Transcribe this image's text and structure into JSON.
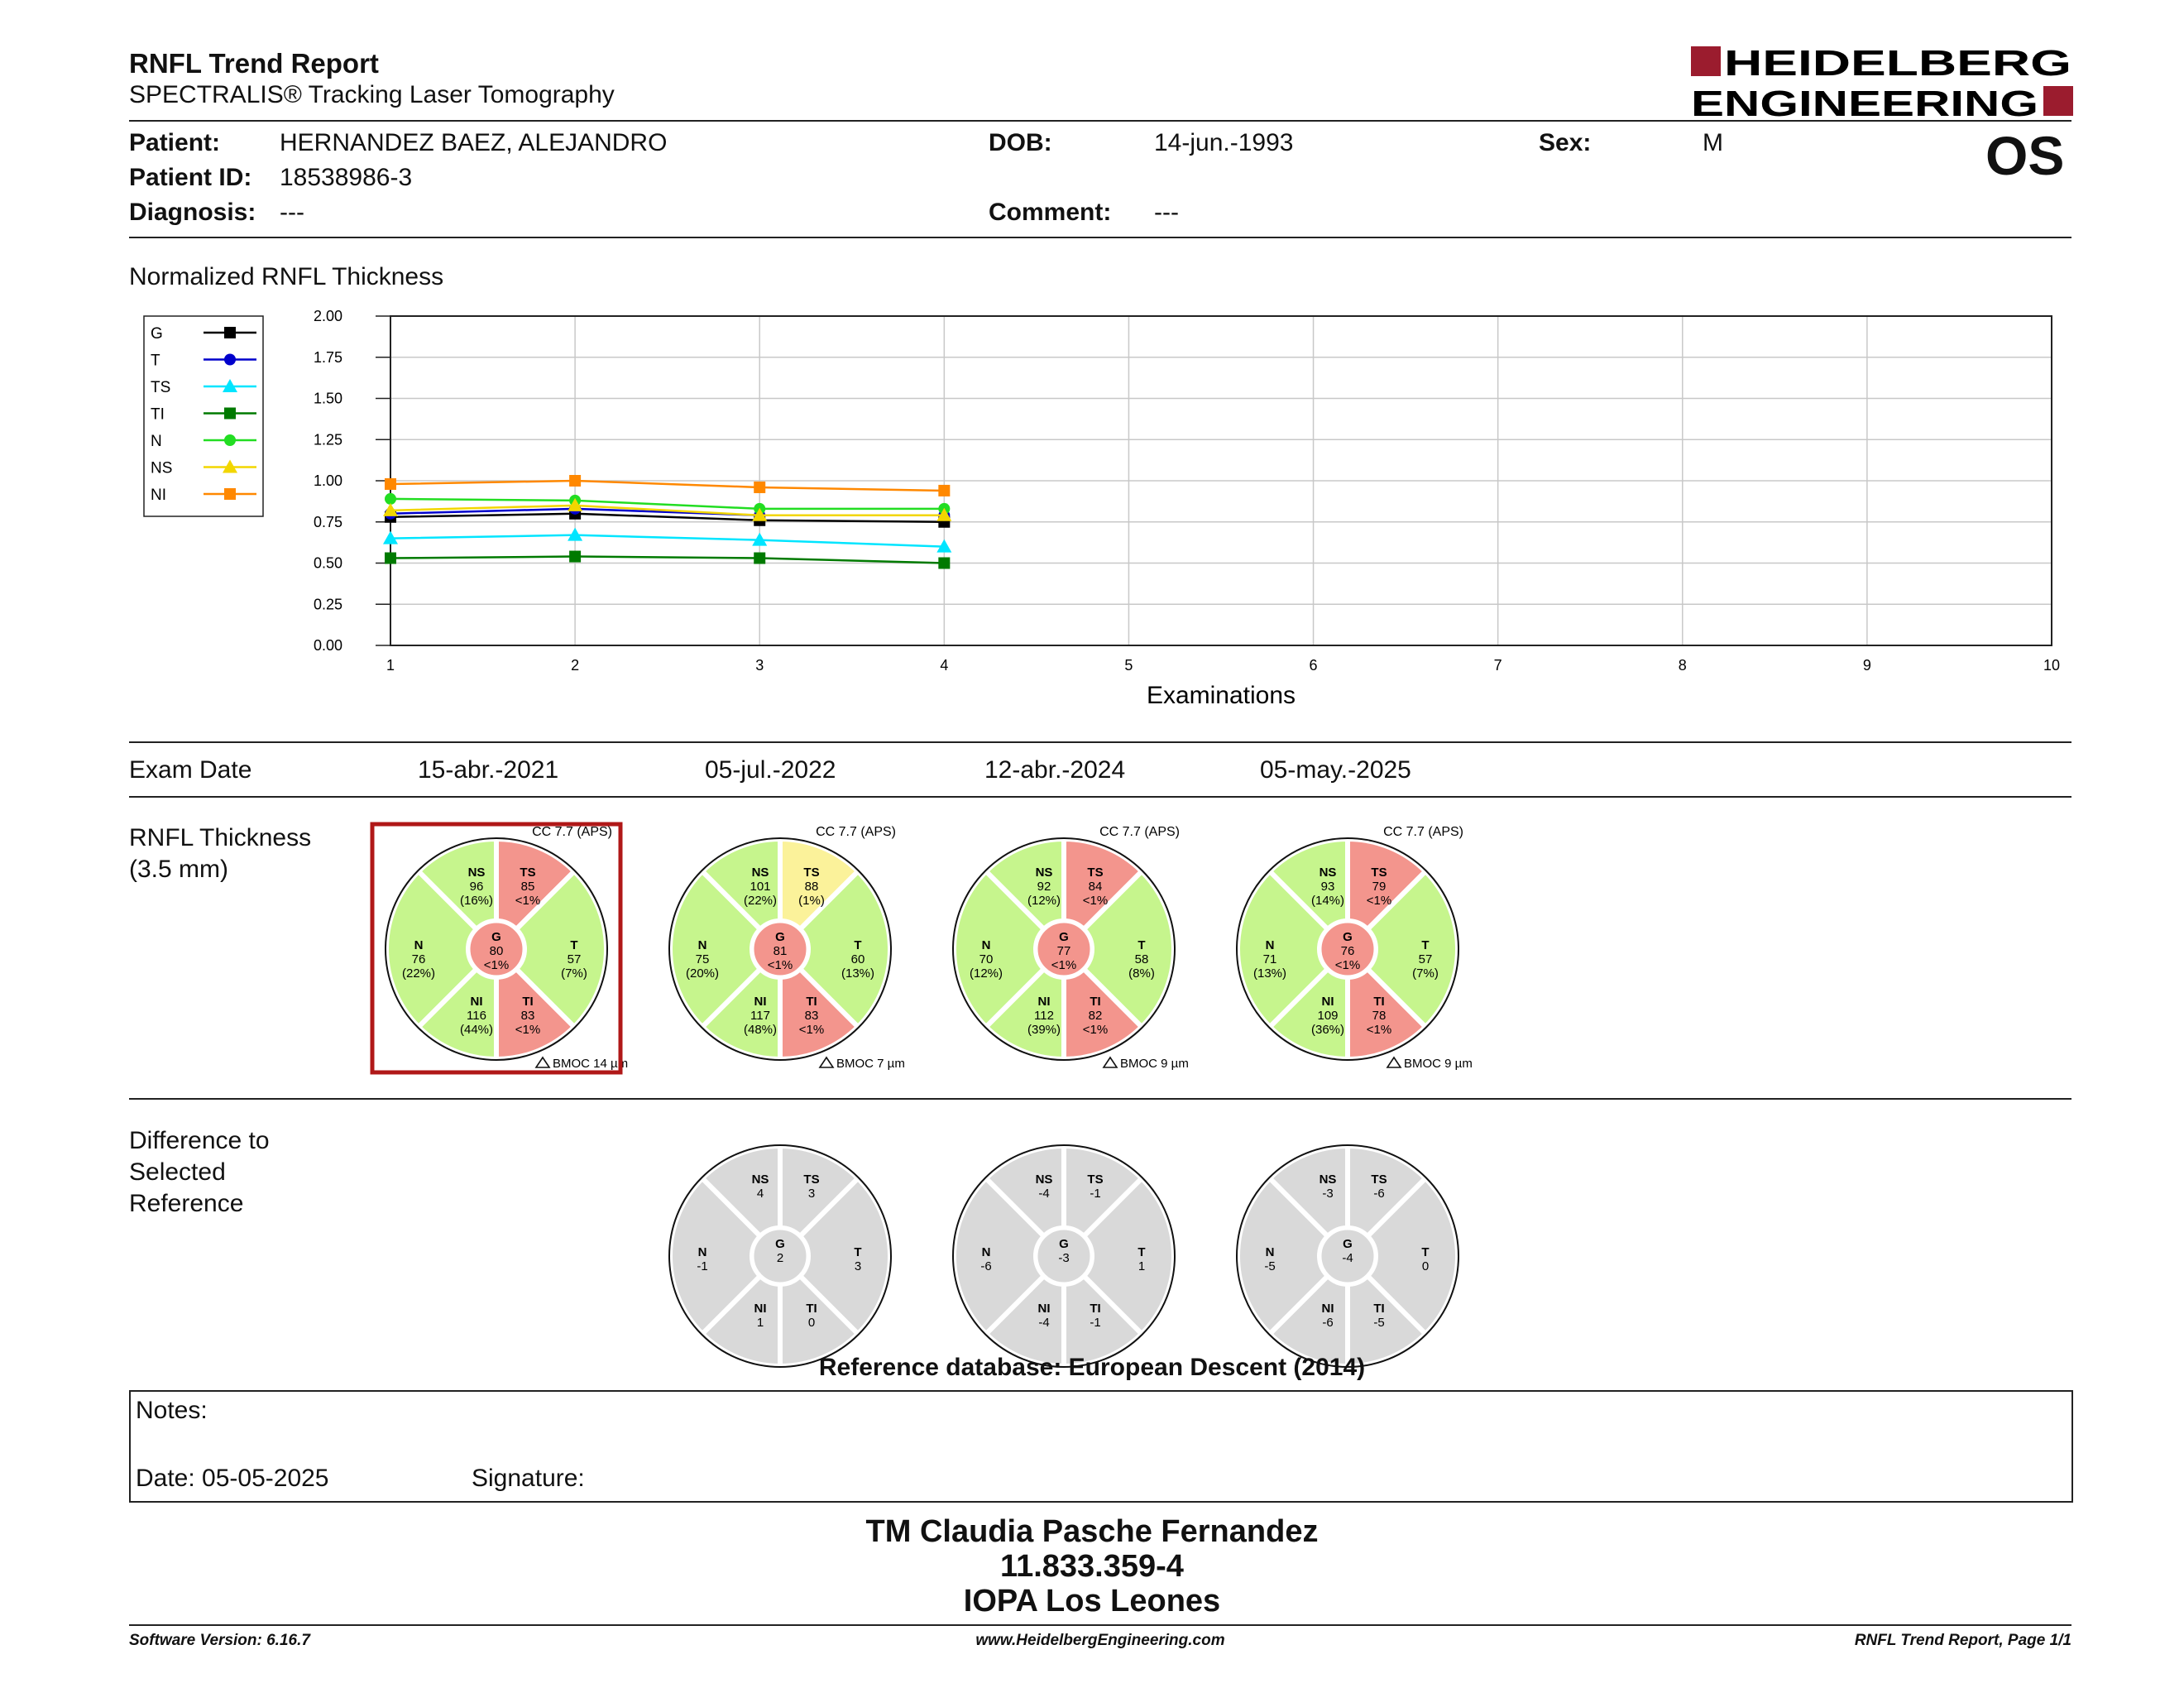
{
  "header": {
    "title": "RNFL Trend Report",
    "subtitle": "SPECTRALIS® Tracking Laser Tomography",
    "logo_line1": "HEIDELBERG",
    "logo_line2": "ENGINEERING",
    "brand_color": "#9b1c2e"
  },
  "patient": {
    "patient_label": "Patient:",
    "patient_value": "HERNANDEZ BAEZ, ALEJANDRO",
    "id_label": "Patient ID:",
    "id_value": "18538986-3",
    "diagnosis_label": "Diagnosis:",
    "diagnosis_value": "---",
    "dob_label": "DOB:",
    "dob_value": "14-jun.-1993",
    "comment_label": "Comment:",
    "comment_value": "---",
    "sex_label": "Sex:",
    "sex_value": "M",
    "eye": "OS"
  },
  "chart_data": {
    "type": "line",
    "title": "Normalized RNFL Thickness",
    "xlabel": "Examinations",
    "ylabel": "",
    "xlim": [
      1,
      10
    ],
    "ylim": [
      0,
      2
    ],
    "x_ticks": [
      "1",
      "2",
      "3",
      "4",
      "5",
      "6",
      "7",
      "8",
      "9",
      "10"
    ],
    "y_ticks": [
      "0.00",
      "0.25",
      "0.50",
      "0.75",
      "1.00",
      "1.25",
      "1.50",
      "1.75",
      "2.00"
    ],
    "grid": true,
    "legend_position": "left",
    "x": [
      1,
      2,
      3,
      4
    ],
    "series": [
      {
        "name": "G",
        "color": "#000000",
        "marker": "square",
        "values": [
          0.78,
          0.8,
          0.76,
          0.75
        ]
      },
      {
        "name": "T",
        "color": "#0000cc",
        "marker": "circle",
        "values": [
          0.8,
          0.83,
          0.79,
          0.79
        ]
      },
      {
        "name": "TS",
        "color": "#00e5ff",
        "marker": "triangle",
        "values": [
          0.65,
          0.67,
          0.64,
          0.6
        ]
      },
      {
        "name": "TI",
        "color": "#007a00",
        "marker": "square",
        "values": [
          0.53,
          0.54,
          0.53,
          0.5
        ]
      },
      {
        "name": "N",
        "color": "#22dd22",
        "marker": "circle",
        "values": [
          0.89,
          0.88,
          0.83,
          0.83
        ]
      },
      {
        "name": "NS",
        "color": "#f2d600",
        "marker": "triangle",
        "values": [
          0.82,
          0.85,
          0.79,
          0.79
        ]
      },
      {
        "name": "NI",
        "color": "#ff8800",
        "marker": "square",
        "values": [
          0.98,
          1.0,
          0.96,
          0.94
        ]
      }
    ]
  },
  "exams": {
    "label": "Exam Date",
    "dates": [
      "15-abr.-2021",
      "05-jul.-2022",
      "12-abr.-2024",
      "05-may.-2025"
    ]
  },
  "thickness": {
    "label_line1": "RNFL Thickness",
    "label_line2": "(3.5 mm)",
    "colors": {
      "normal": "#c6f58d",
      "borderline": "#fbf29a",
      "outside": "#f3958d",
      "diff": "#d9d9d9"
    },
    "selected_index": 0,
    "exams": [
      {
        "cc": "CC 7.7 (APS)",
        "bmoc": "BMOC 14 µm",
        "G": {
          "v": "80",
          "p": "<1%",
          "s": "outside"
        },
        "T": {
          "v": "57",
          "p": "(7%)",
          "s": "normal"
        },
        "TS": {
          "v": "85",
          "p": "<1%",
          "s": "outside"
        },
        "TI": {
          "v": "83",
          "p": "<1%",
          "s": "outside"
        },
        "N": {
          "v": "76",
          "p": "(22%)",
          "s": "normal"
        },
        "NS": {
          "v": "96",
          "p": "(16%)",
          "s": "normal"
        },
        "NI": {
          "v": "116",
          "p": "(44%)",
          "s": "normal"
        }
      },
      {
        "cc": "CC 7.7 (APS)",
        "bmoc": "BMOC 7 µm",
        "G": {
          "v": "81",
          "p": "<1%",
          "s": "outside"
        },
        "T": {
          "v": "60",
          "p": "(13%)",
          "s": "normal"
        },
        "TS": {
          "v": "88",
          "p": "(1%)",
          "s": "borderline"
        },
        "TI": {
          "v": "83",
          "p": "<1%",
          "s": "outside"
        },
        "N": {
          "v": "75",
          "p": "(20%)",
          "s": "normal"
        },
        "NS": {
          "v": "101",
          "p": "(22%)",
          "s": "normal"
        },
        "NI": {
          "v": "117",
          "p": "(48%)",
          "s": "normal"
        }
      },
      {
        "cc": "CC 7.7 (APS)",
        "bmoc": "BMOC 9 µm",
        "G": {
          "v": "77",
          "p": "<1%",
          "s": "outside"
        },
        "T": {
          "v": "58",
          "p": "(8%)",
          "s": "normal"
        },
        "TS": {
          "v": "84",
          "p": "<1%",
          "s": "outside"
        },
        "TI": {
          "v": "82",
          "p": "<1%",
          "s": "outside"
        },
        "N": {
          "v": "70",
          "p": "(12%)",
          "s": "normal"
        },
        "NS": {
          "v": "92",
          "p": "(12%)",
          "s": "normal"
        },
        "NI": {
          "v": "112",
          "p": "(39%)",
          "s": "normal"
        }
      },
      {
        "cc": "CC 7.7 (APS)",
        "bmoc": "BMOC 9 µm",
        "G": {
          "v": "76",
          "p": "<1%",
          "s": "outside"
        },
        "T": {
          "v": "57",
          "p": "(7%)",
          "s": "normal"
        },
        "TS": {
          "v": "79",
          "p": "<1%",
          "s": "outside"
        },
        "TI": {
          "v": "78",
          "p": "<1%",
          "s": "outside"
        },
        "N": {
          "v": "71",
          "p": "(13%)",
          "s": "normal"
        },
        "NS": {
          "v": "93",
          "p": "(14%)",
          "s": "normal"
        },
        "NI": {
          "v": "109",
          "p": "(36%)",
          "s": "normal"
        }
      }
    ]
  },
  "difference": {
    "label_line1": "Difference to",
    "label_line2": "Selected",
    "label_line3": "Reference",
    "exams": [
      {
        "exam_index": 1,
        "G": "2",
        "T": "3",
        "TS": "3",
        "TI": "0",
        "N": "-1",
        "NS": "4",
        "NI": "1"
      },
      {
        "exam_index": 2,
        "G": "-3",
        "T": "1",
        "TS": "-1",
        "TI": "-1",
        "N": "-6",
        "NS": "-4",
        "NI": "-4"
      },
      {
        "exam_index": 3,
        "G": "-4",
        "T": "0",
        "TS": "-6",
        "TI": "-5",
        "N": "-5",
        "NS": "-3",
        "NI": "-6"
      }
    ]
  },
  "reference_db": "Reference database: European Descent (2014)",
  "notes": {
    "notes_label": "Notes:",
    "date_label": "Date: 05-05-2025",
    "signature_label": "Signature:"
  },
  "signature_block": {
    "name": "TM Claudia Pasche Fernandez",
    "id": "11.833.359-4",
    "place": "IOPA Los Leones"
  },
  "footer": {
    "software": "Software Version: 6.16.7",
    "website": "www.HeidelbergEngineering.com",
    "page": "RNFL Trend Report, Page 1/1"
  }
}
